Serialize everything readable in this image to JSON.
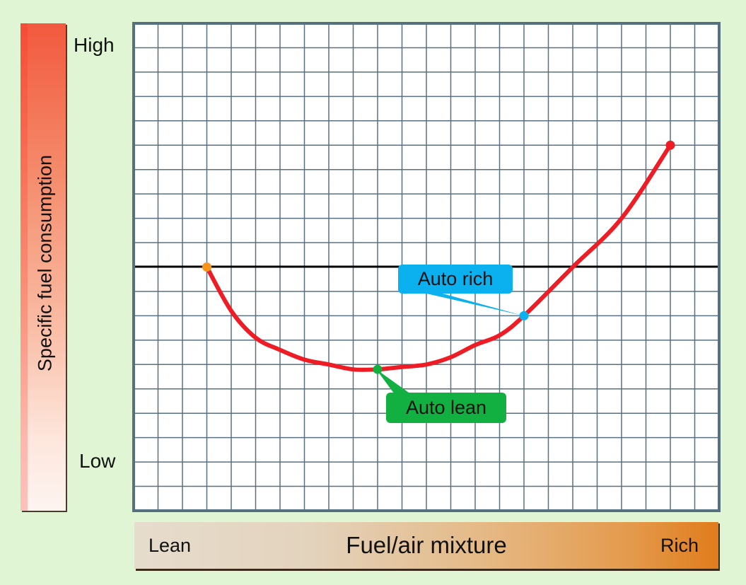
{
  "chart_data": {
    "type": "line",
    "title": "",
    "xlabel": "Fuel/air mixture",
    "ylabel": "Specific fuel consumption",
    "x_tick_labels": [
      "Lean",
      "Rich"
    ],
    "y_tick_labels": [
      "High",
      "Low"
    ],
    "grid": true,
    "grid_columns": 24,
    "grid_rows": 20,
    "reference_line": {
      "orientation": "horizontal",
      "grid_row_from_top": 10,
      "color": "#000000"
    },
    "series": [
      {
        "name": "Specific fuel consumption curve",
        "color": "#ee1c25",
        "points_grid": [
          {
            "col": 3,
            "row": 10
          },
          {
            "col": 4,
            "row": 11.8
          },
          {
            "col": 5,
            "row": 12.9
          },
          {
            "col": 6,
            "row": 13.4
          },
          {
            "col": 7,
            "row": 13.8
          },
          {
            "col": 8,
            "row": 14.0
          },
          {
            "col": 9,
            "row": 14.2
          },
          {
            "col": 10,
            "row": 14.2
          },
          {
            "col": 11,
            "row": 14.1
          },
          {
            "col": 12,
            "row": 14.0
          },
          {
            "col": 13,
            "row": 13.7
          },
          {
            "col": 14,
            "row": 13.2
          },
          {
            "col": 15,
            "row": 12.8
          },
          {
            "col": 16,
            "row": 12.0
          },
          {
            "col": 18,
            "row": 10.0
          },
          {
            "col": 20,
            "row": 8.0
          },
          {
            "col": 22,
            "row": 5.0
          }
        ]
      }
    ],
    "markers": [
      {
        "label": "",
        "col": 3,
        "row": 10,
        "color": "#f7941d"
      },
      {
        "label": "Auto lean",
        "col": 10,
        "row": 14.2,
        "color": "#12b041"
      },
      {
        "label": "Auto rich",
        "col": 16,
        "row": 12,
        "color": "#0bb0ef"
      },
      {
        "label": "",
        "col": 22,
        "row": 5,
        "color": "#ee1c25"
      }
    ],
    "annotations": [
      "Auto rich",
      "Auto lean"
    ]
  },
  "yaxis": {
    "label": "Specific fuel consumption",
    "high": "High",
    "low": "Low"
  },
  "xaxis": {
    "label": "Fuel/air mixture",
    "lean": "Lean",
    "rich": "Rich"
  },
  "callouts": {
    "auto_rich": "Auto rich",
    "auto_lean": "Auto lean"
  },
  "colors": {
    "background": "#dff5d4",
    "grid": "#587080",
    "curve": "#ee1c25",
    "auto_rich": "#0bb0ef",
    "auto_lean": "#12b041",
    "start_marker": "#f7941d"
  }
}
